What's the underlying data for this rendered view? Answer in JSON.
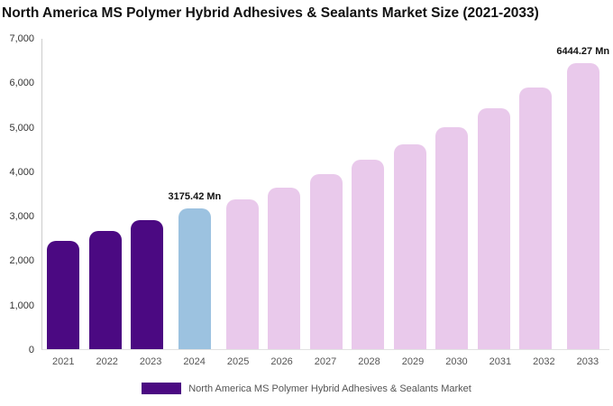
{
  "title": "North America MS Polymer Hybrid Adhesives & Sealants Market Size (2021-2033)",
  "legend": {
    "label": "North America MS Polymer Hybrid Adhesives & Sealants Market",
    "swatch_color": "#4B0982"
  },
  "chart_data": {
    "type": "bar",
    "title": "North America MS Polymer Hybrid Adhesives & Sealants Market Size (2021-2033)",
    "categories": [
      "2021",
      "2022",
      "2023",
      "2024",
      "2025",
      "2026",
      "2027",
      "2028",
      "2029",
      "2030",
      "2031",
      "2032",
      "2033"
    ],
    "values": [
      2450,
      2660,
      2920,
      3175.42,
      3370,
      3650,
      3940,
      4270,
      4620,
      5010,
      5440,
      5900,
      6444.27
    ],
    "unit": "Mn",
    "annotations": [
      {
        "category": "2024",
        "text": "3175.42 Mn"
      },
      {
        "category": "2033",
        "text": "6444.27 Mn"
      }
    ],
    "color_roles": [
      "historical",
      "historical",
      "historical",
      "current",
      "forecast",
      "forecast",
      "forecast",
      "forecast",
      "forecast",
      "forecast",
      "forecast",
      "forecast",
      "forecast"
    ],
    "palette": {
      "historical": "#4B0982",
      "current": "#9CC2E0",
      "forecast": "#E9C9EB"
    },
    "xlabel": "",
    "ylabel": "",
    "ylim": [
      0,
      7000
    ],
    "ytick_step": 1000,
    "grid": false,
    "legend_position": "bottom"
  }
}
